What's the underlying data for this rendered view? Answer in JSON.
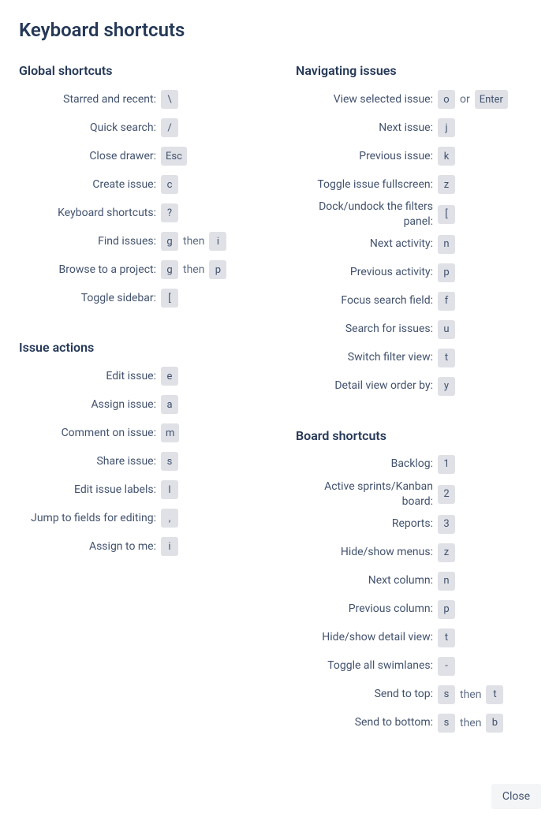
{
  "title": "Keyboard shortcuts",
  "close_label": "Close",
  "sections": {
    "global": {
      "title": "Global shortcuts",
      "items": [
        {
          "label": "Starred and recent:",
          "keys": [
            {
              "t": "k",
              "v": "\\"
            }
          ]
        },
        {
          "label": "Quick search:",
          "keys": [
            {
              "t": "k",
              "v": "/"
            }
          ]
        },
        {
          "label": "Close drawer:",
          "keys": [
            {
              "t": "k",
              "v": "Esc"
            }
          ]
        },
        {
          "label": "Create issue:",
          "keys": [
            {
              "t": "k",
              "v": "c"
            }
          ]
        },
        {
          "label": "Keyboard shortcuts:",
          "keys": [
            {
              "t": "k",
              "v": "?"
            }
          ]
        },
        {
          "label": "Find issues:",
          "keys": [
            {
              "t": "k",
              "v": "g"
            },
            {
              "t": "j",
              "v": "then"
            },
            {
              "t": "k",
              "v": "i"
            }
          ]
        },
        {
          "label": "Browse to a project:",
          "keys": [
            {
              "t": "k",
              "v": "g"
            },
            {
              "t": "j",
              "v": "then"
            },
            {
              "t": "k",
              "v": "p"
            }
          ]
        },
        {
          "label": "Toggle sidebar:",
          "keys": [
            {
              "t": "k",
              "v": "["
            }
          ]
        }
      ]
    },
    "navigating": {
      "title": "Navigating issues",
      "items": [
        {
          "label": "View selected issue:",
          "keys": [
            {
              "t": "k",
              "v": "o"
            },
            {
              "t": "j",
              "v": "or"
            },
            {
              "t": "k",
              "v": "Enter"
            }
          ]
        },
        {
          "label": "Next issue:",
          "keys": [
            {
              "t": "k",
              "v": "j"
            }
          ]
        },
        {
          "label": "Previous issue:",
          "keys": [
            {
              "t": "k",
              "v": "k"
            }
          ]
        },
        {
          "label": "Toggle issue fullscreen:",
          "keys": [
            {
              "t": "k",
              "v": "z"
            }
          ]
        },
        {
          "label": "Dock/undock the filters panel:",
          "keys": [
            {
              "t": "k",
              "v": "["
            }
          ]
        },
        {
          "label": "Next activity:",
          "keys": [
            {
              "t": "k",
              "v": "n"
            }
          ]
        },
        {
          "label": "Previous activity:",
          "keys": [
            {
              "t": "k",
              "v": "p"
            }
          ]
        },
        {
          "label": "Focus search field:",
          "keys": [
            {
              "t": "k",
              "v": "f"
            }
          ]
        },
        {
          "label": "Search for issues:",
          "keys": [
            {
              "t": "k",
              "v": "u"
            }
          ]
        },
        {
          "label": "Switch filter view:",
          "keys": [
            {
              "t": "k",
              "v": "t"
            }
          ]
        },
        {
          "label": "Detail view order by:",
          "keys": [
            {
              "t": "k",
              "v": "y"
            }
          ]
        }
      ]
    },
    "issue_actions": {
      "title": "Issue actions",
      "items": [
        {
          "label": "Edit issue:",
          "keys": [
            {
              "t": "k",
              "v": "e"
            }
          ]
        },
        {
          "label": "Assign issue:",
          "keys": [
            {
              "t": "k",
              "v": "a"
            }
          ]
        },
        {
          "label": "Comment on issue:",
          "keys": [
            {
              "t": "k",
              "v": "m"
            }
          ]
        },
        {
          "label": "Share issue:",
          "keys": [
            {
              "t": "k",
              "v": "s"
            }
          ]
        },
        {
          "label": "Edit issue labels:",
          "keys": [
            {
              "t": "k",
              "v": "l"
            }
          ]
        },
        {
          "label": "Jump to fields for editing:",
          "keys": [
            {
              "t": "k",
              "v": ","
            }
          ]
        },
        {
          "label": "Assign to me:",
          "keys": [
            {
              "t": "k",
              "v": "i"
            }
          ]
        }
      ]
    },
    "board": {
      "title": "Board shortcuts",
      "items": [
        {
          "label": "Backlog:",
          "keys": [
            {
              "t": "k",
              "v": "1"
            }
          ]
        },
        {
          "label": "Active sprints/Kanban board:",
          "keys": [
            {
              "t": "k",
              "v": "2"
            }
          ]
        },
        {
          "label": "Reports:",
          "keys": [
            {
              "t": "k",
              "v": "3"
            }
          ]
        },
        {
          "label": "Hide/show menus:",
          "keys": [
            {
              "t": "k",
              "v": "z"
            }
          ]
        },
        {
          "label": "Next column:",
          "keys": [
            {
              "t": "k",
              "v": "n"
            }
          ]
        },
        {
          "label": "Previous column:",
          "keys": [
            {
              "t": "k",
              "v": "p"
            }
          ]
        },
        {
          "label": "Hide/show detail view:",
          "keys": [
            {
              "t": "k",
              "v": "t"
            }
          ]
        },
        {
          "label": "Toggle all swimlanes:",
          "keys": [
            {
              "t": "k",
              "v": "-"
            }
          ]
        },
        {
          "label": "Send to top:",
          "keys": [
            {
              "t": "k",
              "v": "s"
            },
            {
              "t": "j",
              "v": "then"
            },
            {
              "t": "k",
              "v": "t"
            }
          ]
        },
        {
          "label": "Send to bottom:",
          "keys": [
            {
              "t": "k",
              "v": "s"
            },
            {
              "t": "j",
              "v": "then"
            },
            {
              "t": "k",
              "v": "b"
            }
          ]
        }
      ]
    }
  }
}
